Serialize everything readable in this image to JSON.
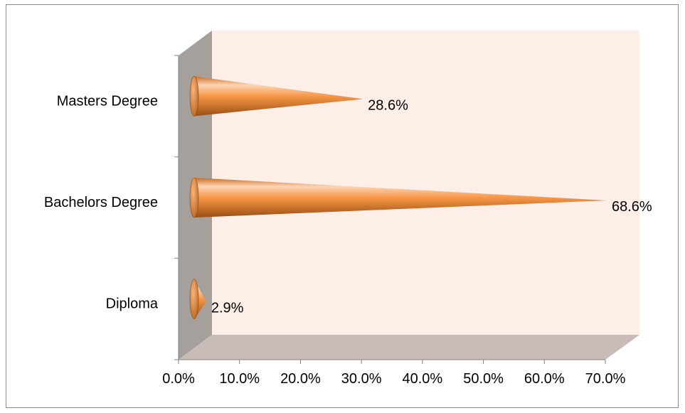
{
  "chart_data": {
    "type": "bar",
    "orientation": "horizontal",
    "style": "3d-cone",
    "categories": [
      "Masters Degree",
      "Bachelors Degree",
      "Diploma"
    ],
    "values": [
      28.6,
      68.6,
      2.9
    ],
    "data_labels": [
      "28.6%",
      "68.6%",
      "2.9%"
    ],
    "x_ticks": [
      0,
      10,
      20,
      30,
      40,
      50,
      60,
      70
    ],
    "x_tick_labels": [
      "0.0%",
      "10.0%",
      "20.0%",
      "30.0%",
      "40.0%",
      "50.0%",
      "60.0%",
      "70.0%"
    ],
    "xlim": [
      0,
      70
    ],
    "title": "",
    "xlabel": "",
    "ylabel": "",
    "grid": false,
    "legend": "none",
    "colors": {
      "bar": "#f79646",
      "bar_highlight": "#fcd5b4",
      "bar_shadow": "#b35f1a",
      "back_wall": "#fdeee8",
      "side_wall": "#a6a09c",
      "floor": "#c9bcb8"
    }
  }
}
